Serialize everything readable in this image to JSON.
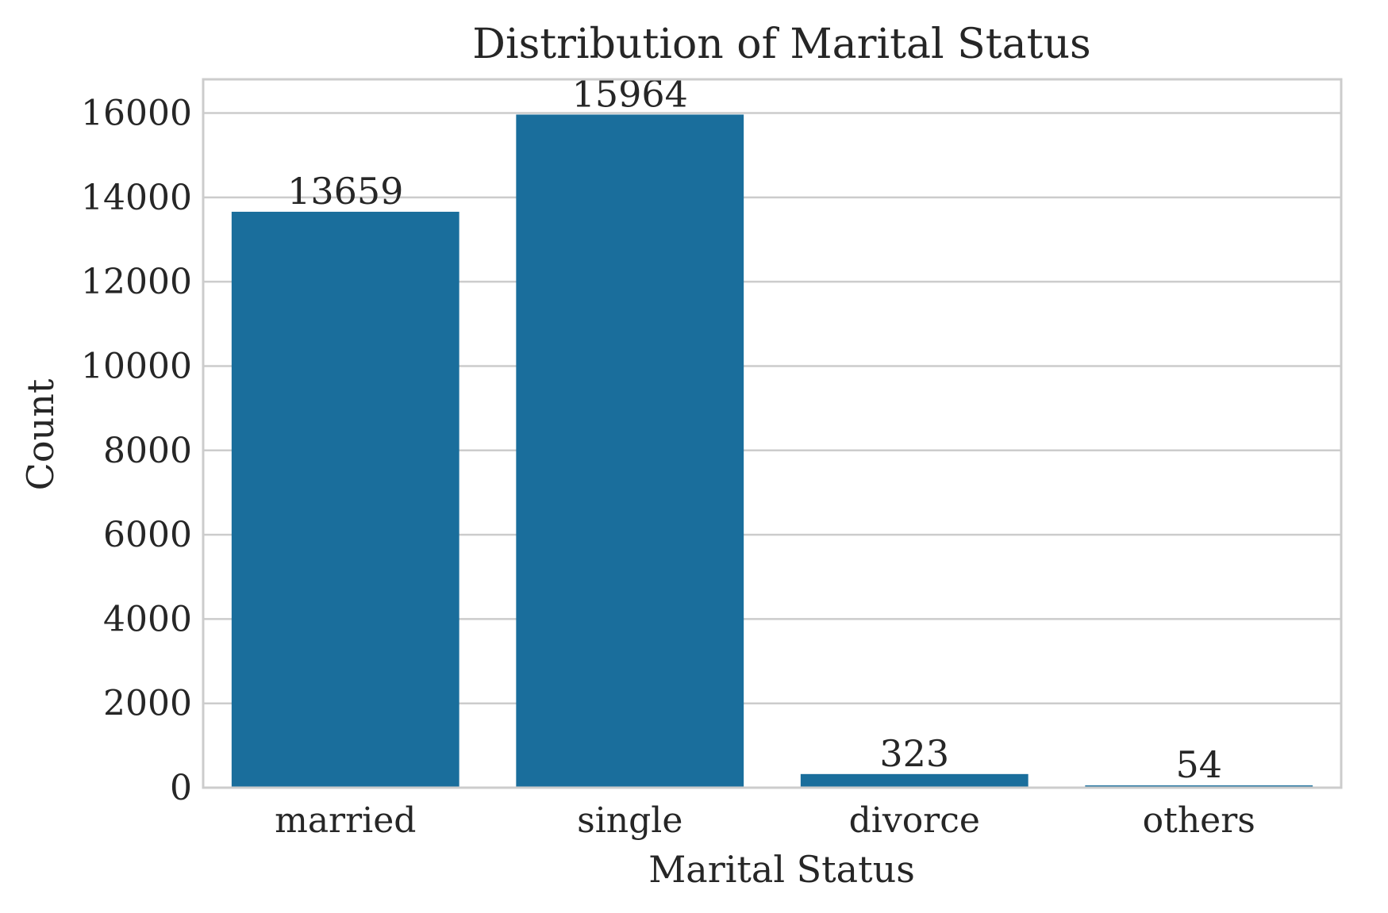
{
  "chart_data": {
    "type": "bar",
    "title": "Distribution of Marital Status",
    "xlabel": "Marital Status",
    "ylabel": "Count",
    "categories": [
      "married",
      "single",
      "divorce",
      "others"
    ],
    "values": [
      13659,
      15964,
      323,
      54
    ],
    "data_labels": [
      "13659",
      "15964",
      "323",
      "54"
    ],
    "ylim": [
      0,
      16800
    ],
    "yticks": [
      0,
      2000,
      4000,
      6000,
      8000,
      10000,
      12000,
      14000,
      16000
    ],
    "grid": "horizontal",
    "bar_color": "#1a6e9c",
    "grid_color": "#cccccc",
    "text_color": "#262626"
  }
}
